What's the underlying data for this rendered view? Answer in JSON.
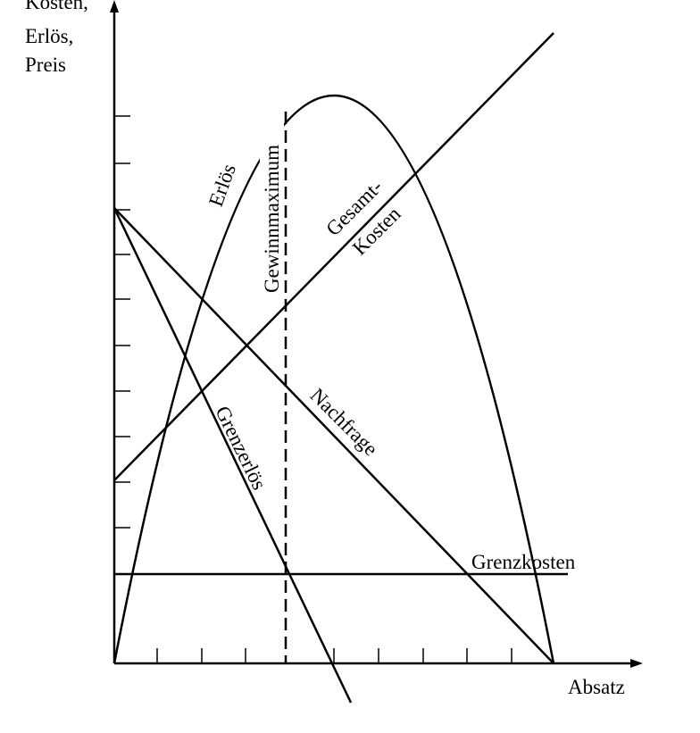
{
  "axes": {
    "y_label": [
      "Kosten,",
      "Erlös,",
      "Preis"
    ],
    "x_label": "Absatz"
  },
  "curves": {
    "revenue": "Erlös",
    "profit_max": "Gewinnmaximum",
    "total_cost": [
      "Gesamt-",
      "Kosten"
    ],
    "demand": "Nachfrage",
    "marginal_revenue": "Grenzerlös",
    "marginal_cost": "Grenzkosten"
  }
}
